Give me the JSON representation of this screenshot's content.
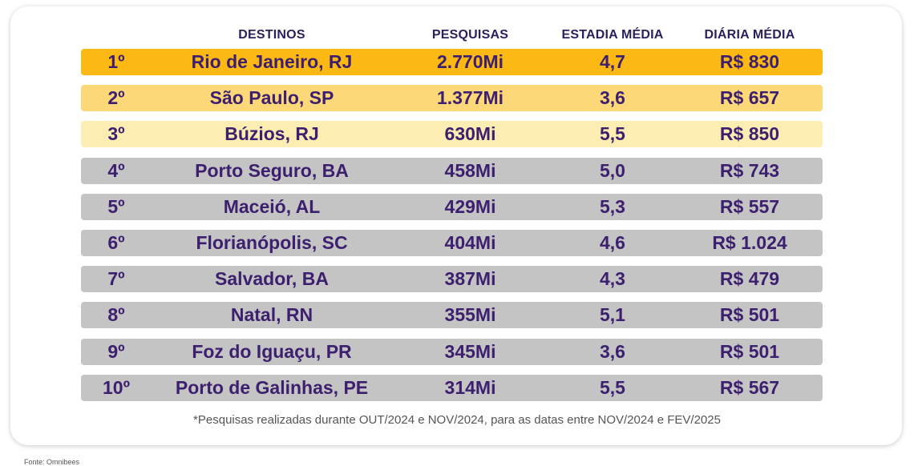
{
  "headers": {
    "destinos": "DESTINOS",
    "pesquisas": "PESQUISAS",
    "estadia": "ESTADIA MÉDIA",
    "diaria": "DIÁRIA MÉDIA"
  },
  "rows": [
    {
      "rank": "1º",
      "destino": "Rio de Janeiro, RJ",
      "pesquisas": "2.770Mi",
      "estadia": "4,7",
      "diaria": "R$ 830",
      "color": "#FDB913"
    },
    {
      "rank": "2º",
      "destino": "São Paulo, SP",
      "pesquisas": "1.377Mi",
      "estadia": "3,6",
      "diaria": "R$ 657",
      "color": "#FDD878"
    },
    {
      "rank": "3º",
      "destino": "Búzios, RJ",
      "pesquisas": "630Mi",
      "estadia": "5,5",
      "diaria": "R$ 850",
      "color": "#FEEDB3"
    },
    {
      "rank": "4º",
      "destino": "Porto Seguro, BA",
      "pesquisas": "458Mi",
      "estadia": "5,0",
      "diaria": "R$ 743",
      "color": "#C4C4C4"
    },
    {
      "rank": "5º",
      "destino": "Maceió, AL",
      "pesquisas": "429Mi",
      "estadia": "5,3",
      "diaria": "R$ 557",
      "color": "#C4C4C4"
    },
    {
      "rank": "6º",
      "destino": "Florianópolis, SC",
      "pesquisas": "404Mi",
      "estadia": "4,6",
      "diaria": "R$ 1.024",
      "color": "#C4C4C4"
    },
    {
      "rank": "7º",
      "destino": "Salvador, BA",
      "pesquisas": "387Mi",
      "estadia": "4,3",
      "diaria": "R$ 479",
      "color": "#C4C4C4"
    },
    {
      "rank": "8º",
      "destino": "Natal, RN",
      "pesquisas": "355Mi",
      "estadia": "5,1",
      "diaria": "R$ 501",
      "color": "#C4C4C4"
    },
    {
      "rank": "9º",
      "destino": "Foz do Iguaçu, PR",
      "pesquisas": "345Mi",
      "estadia": "3,6",
      "diaria": "R$ 501",
      "color": "#C4C4C4"
    },
    {
      "rank": "10º",
      "destino": "Porto de Galinhas, PE",
      "pesquisas": "314Mi",
      "estadia": "5,5",
      "diaria": "R$ 567",
      "color": "#C4C4C4"
    }
  ],
  "note": "*Pesquisas realizadas durante OUT/2024 e NOV/2024, para as datas entre NOV/2024 e FEV/2025",
  "source": "Fonte: Omnibees"
}
